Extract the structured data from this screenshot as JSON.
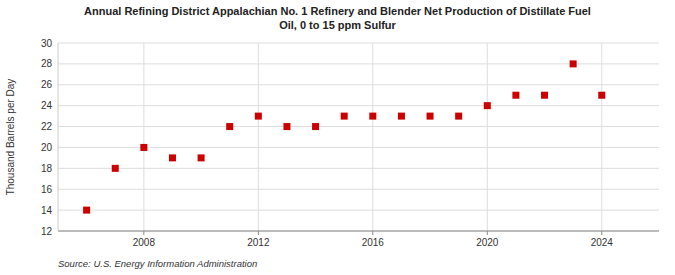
{
  "chart_data": {
    "type": "scatter",
    "title": "Annual Refining District Appalachian No. 1 Refinery and Blender Net Production of Distillate Fuel\nOil, 0 to 15 ppm Sulfur",
    "ylabel": "Thousand Barrels per Day",
    "source": "Source: U.S. Energy Information Administration",
    "x": [
      2006,
      2007,
      2008,
      2009,
      2010,
      2011,
      2012,
      2013,
      2014,
      2015,
      2016,
      2017,
      2018,
      2019,
      2020,
      2021,
      2022,
      2023,
      2024
    ],
    "values": [
      14.0,
      18.0,
      20.0,
      19.0,
      19.0,
      22.0,
      23.0,
      22.0,
      22.0,
      23.0,
      23.0,
      23.0,
      23.0,
      23.0,
      24.0,
      25.0,
      25.0,
      28.0,
      25.0
    ],
    "color": "#cc0000",
    "marker": "square",
    "xlim": [
      2005.0,
      2026.0
    ],
    "ylim": [
      12,
      30
    ],
    "xticks": [
      2008,
      2012,
      2016,
      2020,
      2024
    ],
    "yticks": [
      12,
      14,
      16,
      18,
      20,
      22,
      24,
      26,
      28,
      30
    ],
    "grid": true
  }
}
